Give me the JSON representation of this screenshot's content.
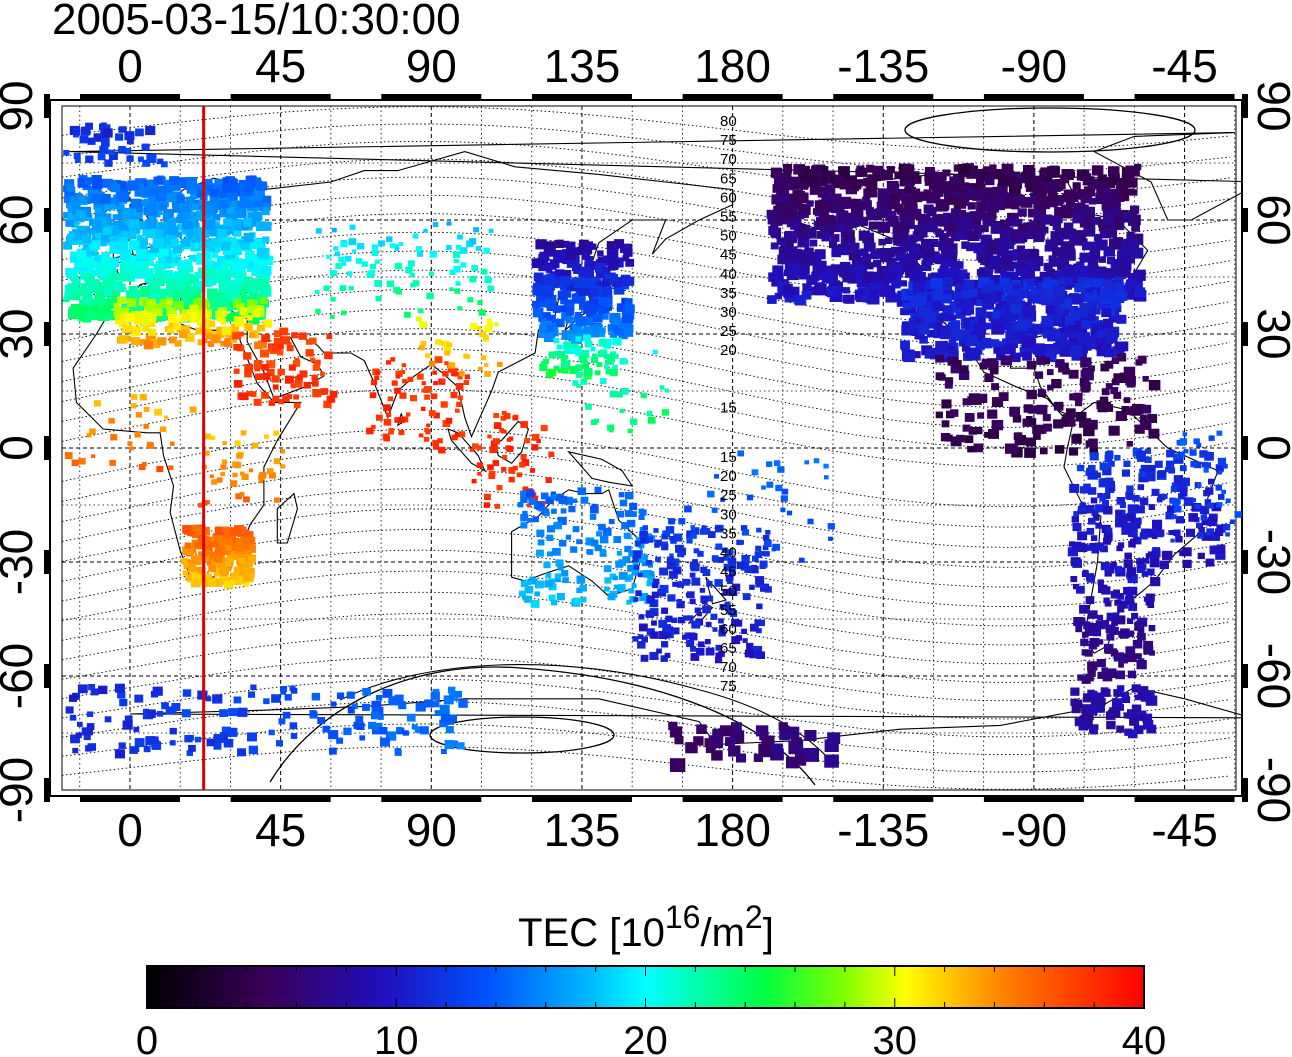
{
  "title": "2005-03-15/10:30:00",
  "top_axis_ticks": [
    "0",
    "45",
    "90",
    "135",
    "180",
    "-135",
    "-90",
    "-45"
  ],
  "bottom_axis_ticks": [
    "0",
    "45",
    "90",
    "135",
    "180",
    "-135",
    "-90",
    "-45"
  ],
  "left_axis_ticks": [
    "90",
    "60",
    "30",
    "0",
    "-30",
    "-60",
    "-90"
  ],
  "right_axis_ticks": [
    "90",
    "60",
    "30",
    "0",
    "-30",
    "-60",
    "-90"
  ],
  "contour_labels_north": [
    "80",
    "75",
    "70",
    "65",
    "60",
    "55",
    "50",
    "45",
    "40",
    "35",
    "30",
    "25",
    "20",
    "15"
  ],
  "contour_labels_south": [
    "15",
    "20",
    "25",
    "30",
    "35",
    "40",
    "45",
    "50",
    "55",
    "60",
    "65",
    "70",
    "75"
  ],
  "marker_longitude": 22,
  "colorbar": {
    "label_main": "TEC  [10",
    "label_sup1": "16",
    "label_mid": "/m",
    "label_sup2": "2",
    "label_end": "]",
    "ticks": [
      "0",
      "10",
      "20",
      "30",
      "40"
    ],
    "min": 0,
    "max": 40
  },
  "colors": {
    "marker_line": "#e00000",
    "frame": "#000000"
  }
}
